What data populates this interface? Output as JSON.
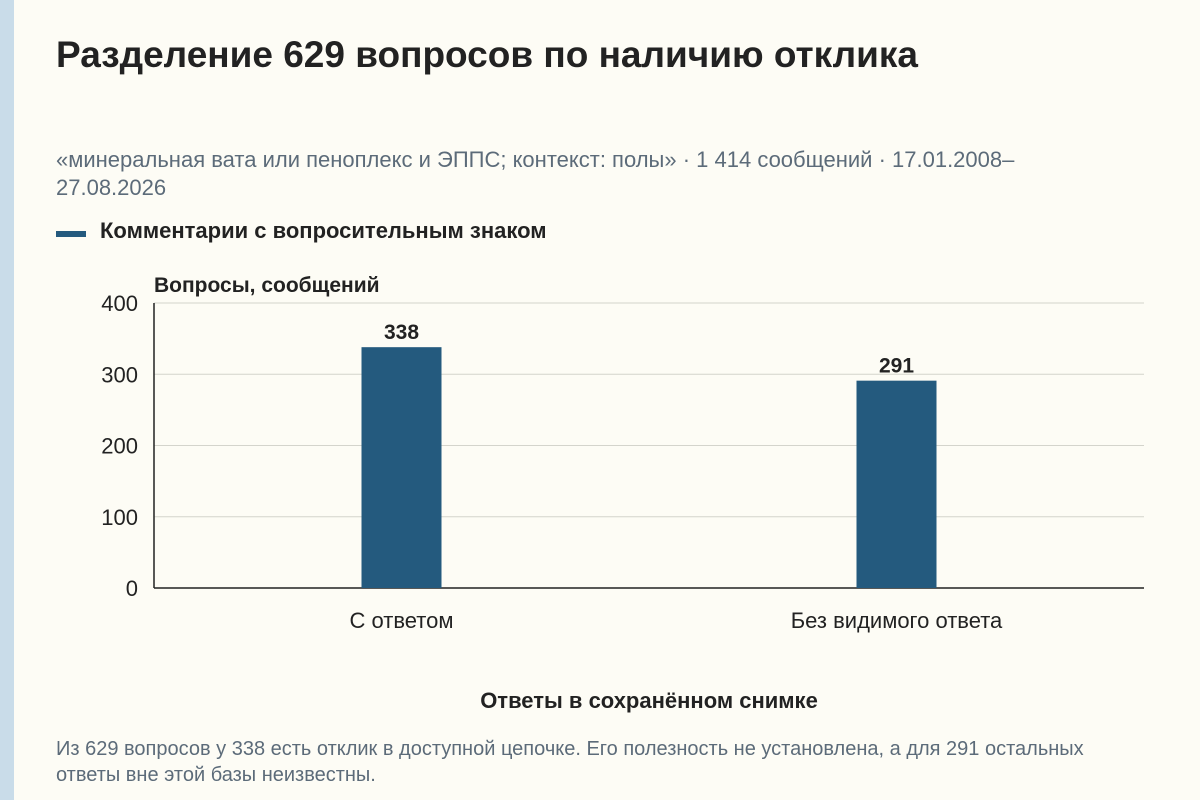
{
  "header": {
    "title": "Разделение 629 вопросов по наличию отклика",
    "subtitle": "«минеральная вата или пеноплекс и ЭППС; контекст: полы» · 1 414 сообщений · 17.01.2008–27.08.2026"
  },
  "legend": {
    "label": "Комментарии с вопросительным знаком"
  },
  "colors": {
    "bar": "#245a7e",
    "grid": "#d4d4cc",
    "axis": "#222222"
  },
  "chart_data": {
    "type": "bar",
    "title": "Разделение 629 вопросов по наличию отклика",
    "ylabel": "Вопросы, сообщений",
    "xlabel": "Ответы в сохранённом снимке",
    "categories": [
      "С ответом",
      "Без видимого ответа"
    ],
    "series": [
      {
        "name": "Комментарии с вопросительным знаком",
        "values": [
          338,
          291
        ]
      }
    ],
    "ylim": [
      0,
      400
    ],
    "yticks": [
      0,
      100,
      200,
      300,
      400
    ],
    "grid": true,
    "legend_position": "top-left"
  },
  "footnote": "Из 629 вопросов у 338 есть отклик в доступной цепочке. Его полезность не установлена, а для 291 остальных ответы вне этой базы неизвестны."
}
